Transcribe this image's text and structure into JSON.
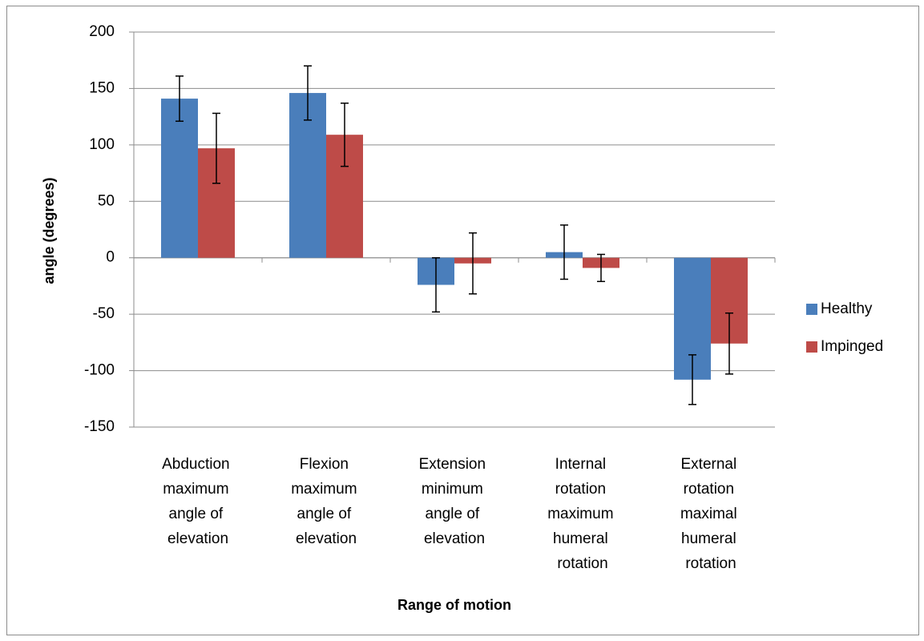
{
  "chart_data": {
    "type": "bar",
    "y_label": "angle (degrees)",
    "x_label": "Range of motion",
    "categories": [
      "Abduction maximum angle of elevation",
      "Flexion maximum angle of elevation",
      "Extension minimum angle of elevation",
      "Internal rotation maximum humeral rotation",
      "External rotation maximal humeral rotation"
    ],
    "series": [
      {
        "name": "Healthy",
        "color": "#4a7ebb",
        "values": [
          141,
          146,
          -24,
          5,
          -108
        ],
        "errors": [
          20,
          24,
          24,
          24,
          22
        ]
      },
      {
        "name": "Impinged",
        "color": "#be4b48",
        "values": [
          97,
          109,
          -5,
          -9,
          -76
        ],
        "errors": [
          31,
          28,
          27,
          12,
          27
        ]
      }
    ],
    "ylim": [
      -150,
      200
    ],
    "yticks": [
      -150,
      -100,
      -50,
      0,
      50,
      100,
      150,
      200
    ],
    "grid": true,
    "legend": "right"
  }
}
